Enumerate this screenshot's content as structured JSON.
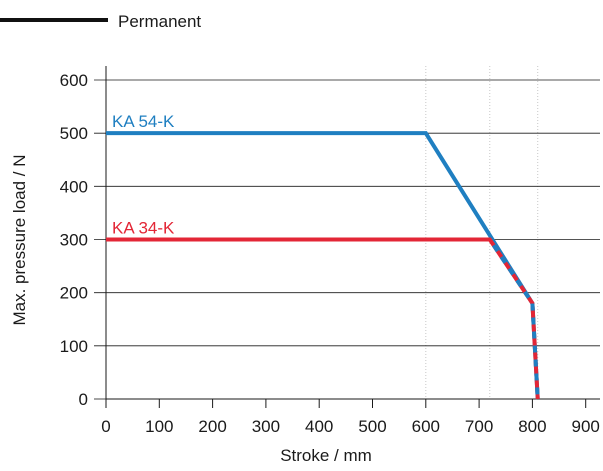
{
  "legend": {
    "entries": [
      {
        "label": "Permanent",
        "color": "#111111"
      }
    ],
    "placement": "top-left"
  },
  "colors": {
    "blue": "#1f7fc1",
    "red": "#e32636",
    "grid": "#1a1a1a",
    "minor_grid": "#c8c8c8"
  },
  "chart_data": {
    "type": "line",
    "title": "",
    "xlabel": "Stroke / mm",
    "ylabel": "Max. pressure load / N",
    "xlim": [
      0,
      900
    ],
    "ylim": [
      0,
      600
    ],
    "x_ticks": [
      0,
      100,
      200,
      300,
      400,
      500,
      600,
      700,
      800,
      900
    ],
    "y_ticks": [
      0,
      100,
      200,
      300,
      400,
      500,
      600
    ],
    "dotted_vlines": [
      600,
      720,
      810
    ],
    "grid": "horizontal",
    "series": [
      {
        "name": "KA 54-K",
        "color": "#1f7fc1",
        "points": [
          [
            0,
            500
          ],
          [
            600,
            500
          ],
          [
            800,
            180
          ],
          [
            810,
            0
          ]
        ]
      },
      {
        "name": "KA 34-K",
        "color": "#e32636",
        "points": [
          [
            0,
            300
          ],
          [
            720,
            300
          ],
          [
            800,
            180
          ],
          [
            810,
            0
          ]
        ]
      }
    ]
  }
}
